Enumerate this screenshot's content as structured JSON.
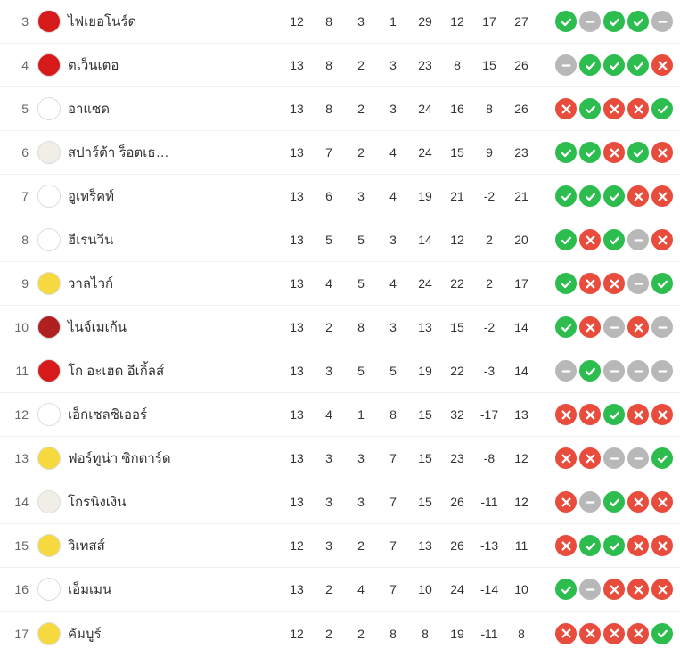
{
  "colors": {
    "win": "#2dbd4f",
    "loss": "#e74c3c",
    "draw": "#b8b8b8",
    "text": "#333333",
    "text_muted": "#666666",
    "bg": "#ffffff",
    "row_border": "#f0f0f0"
  },
  "columns": [
    "pos",
    "logo",
    "name",
    "P",
    "W",
    "D",
    "L",
    "GF",
    "GA",
    "GD",
    "Pts",
    "form"
  ],
  "rows": [
    {
      "pos": 3,
      "name": "ไฟเยอโนร์ด",
      "logo_bg": "#d61a1a",
      "P": 12,
      "W": 8,
      "D": 3,
      "L": 1,
      "GF": 29,
      "GA": 12,
      "GD": 17,
      "Pts": 27,
      "form": [
        "W",
        "D",
        "W",
        "W",
        "D"
      ]
    },
    {
      "pos": 4,
      "name": "ตเว็นเตอ",
      "logo_bg": "#d61a1a",
      "P": 13,
      "W": 8,
      "D": 2,
      "L": 3,
      "GF": 23,
      "GA": 8,
      "GD": 15,
      "Pts": 26,
      "form": [
        "D",
        "W",
        "W",
        "W",
        "L"
      ]
    },
    {
      "pos": 5,
      "name": "อาแซด",
      "logo_bg": "#ffffff",
      "P": 13,
      "W": 8,
      "D": 2,
      "L": 3,
      "GF": 24,
      "GA": 16,
      "GD": 8,
      "Pts": 26,
      "form": [
        "L",
        "W",
        "L",
        "L",
        "W"
      ]
    },
    {
      "pos": 6,
      "name": "สปาร์ต้า ร็อตเธ…",
      "logo_bg": "#f0eee6",
      "P": 13,
      "W": 7,
      "D": 2,
      "L": 4,
      "GF": 24,
      "GA": 15,
      "GD": 9,
      "Pts": 23,
      "form": [
        "W",
        "W",
        "L",
        "W",
        "L"
      ]
    },
    {
      "pos": 7,
      "name": "อูเทร็คท์",
      "logo_bg": "#ffffff",
      "P": 13,
      "W": 6,
      "D": 3,
      "L": 4,
      "GF": 19,
      "GA": 21,
      "GD": -2,
      "Pts": 21,
      "form": [
        "W",
        "W",
        "W",
        "L",
        "L"
      ]
    },
    {
      "pos": 8,
      "name": "ฮีเรนวีน",
      "logo_bg": "#ffffff",
      "P": 13,
      "W": 5,
      "D": 5,
      "L": 3,
      "GF": 14,
      "GA": 12,
      "GD": 2,
      "Pts": 20,
      "form": [
        "W",
        "L",
        "W",
        "D",
        "L"
      ]
    },
    {
      "pos": 9,
      "name": "วาลไวก์",
      "logo_bg": "#f5d93f",
      "P": 13,
      "W": 4,
      "D": 5,
      "L": 4,
      "GF": 24,
      "GA": 22,
      "GD": 2,
      "Pts": 17,
      "form": [
        "W",
        "L",
        "L",
        "D",
        "W"
      ]
    },
    {
      "pos": 10,
      "name": "ไนจ์เมเก้น",
      "logo_bg": "#b02020",
      "P": 13,
      "W": 2,
      "D": 8,
      "L": 3,
      "GF": 13,
      "GA": 15,
      "GD": -2,
      "Pts": 14,
      "form": [
        "W",
        "L",
        "D",
        "L",
        "D"
      ]
    },
    {
      "pos": 11,
      "name": "โก อะเฮด อีเกิ้ลส์",
      "logo_bg": "#d61a1a",
      "P": 13,
      "W": 3,
      "D": 5,
      "L": 5,
      "GF": 19,
      "GA": 22,
      "GD": -3,
      "Pts": 14,
      "form": [
        "D",
        "W",
        "D",
        "D",
        "D"
      ]
    },
    {
      "pos": 12,
      "name": "เอ็กเซลซิเออร์",
      "logo_bg": "#ffffff",
      "P": 13,
      "W": 4,
      "D": 1,
      "L": 8,
      "GF": 15,
      "GA": 32,
      "GD": -17,
      "Pts": 13,
      "form": [
        "L",
        "L",
        "W",
        "L",
        "L"
      ]
    },
    {
      "pos": 13,
      "name": "ฟอร์ทูน่า ซิกตาร์ด",
      "logo_bg": "#f5d93f",
      "P": 13,
      "W": 3,
      "D": 3,
      "L": 7,
      "GF": 15,
      "GA": 23,
      "GD": -8,
      "Pts": 12,
      "form": [
        "L",
        "L",
        "D",
        "D",
        "W"
      ]
    },
    {
      "pos": 14,
      "name": "โกรนิงเงิน",
      "logo_bg": "#f0eee6",
      "P": 13,
      "W": 3,
      "D": 3,
      "L": 7,
      "GF": 15,
      "GA": 26,
      "GD": -11,
      "Pts": 12,
      "form": [
        "L",
        "D",
        "W",
        "L",
        "L"
      ]
    },
    {
      "pos": 15,
      "name": "วิเทสส์",
      "logo_bg": "#f5d93f",
      "P": 12,
      "W": 3,
      "D": 2,
      "L": 7,
      "GF": 13,
      "GA": 26,
      "GD": -13,
      "Pts": 11,
      "form": [
        "L",
        "W",
        "W",
        "L",
        "L"
      ]
    },
    {
      "pos": 16,
      "name": "เอ็มเมน",
      "logo_bg": "#ffffff",
      "P": 13,
      "W": 2,
      "D": 4,
      "L": 7,
      "GF": 10,
      "GA": 24,
      "GD": -14,
      "Pts": 10,
      "form": [
        "W",
        "D",
        "L",
        "L",
        "L"
      ]
    },
    {
      "pos": 17,
      "name": "คัมบูร์",
      "logo_bg": "#f5d93f",
      "P": 12,
      "W": 2,
      "D": 2,
      "L": 8,
      "GF": 8,
      "GA": 19,
      "GD": -11,
      "Pts": 8,
      "form": [
        "L",
        "L",
        "L",
        "L",
        "W"
      ]
    }
  ]
}
